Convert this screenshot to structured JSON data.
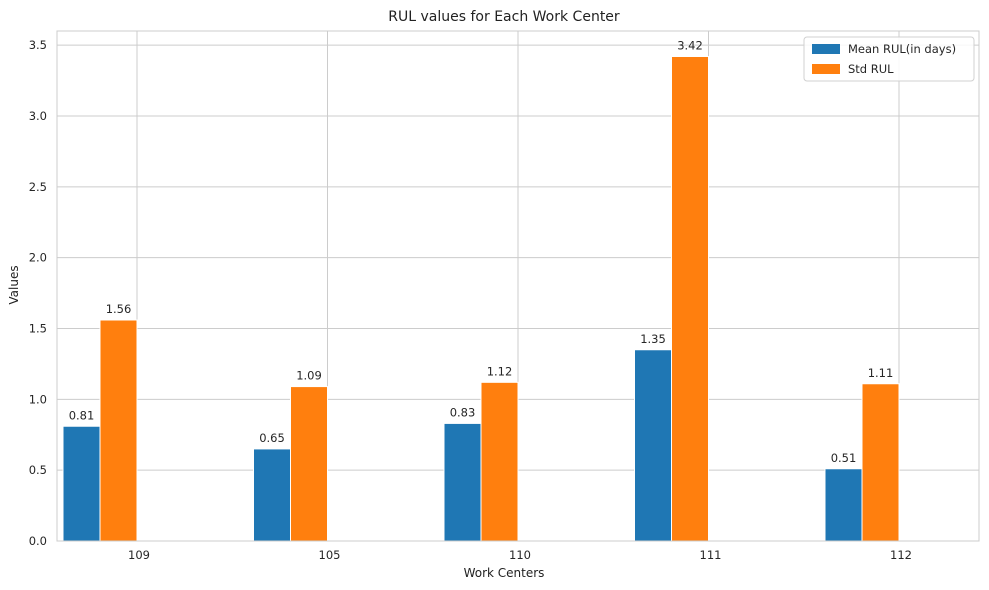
{
  "chart_data": {
    "type": "bar",
    "title": "RUL values for Each Work Center",
    "xlabel": "Work Centers",
    "ylabel": "Values",
    "categories": [
      "109",
      "105",
      "110",
      "111",
      "112"
    ],
    "series": [
      {
        "name": "Mean RUL(in days)",
        "color": "#1f77b4",
        "values": [
          0.81,
          0.65,
          0.83,
          1.35,
          0.51
        ]
      },
      {
        "name": "Std RUL",
        "color": "#ff7f0e",
        "values": [
          1.56,
          1.09,
          1.12,
          3.42,
          1.11
        ]
      }
    ],
    "ylim": [
      0,
      3.6
    ],
    "yticks": [
      "0.0",
      "0.5",
      "1.0",
      "1.5",
      "2.0",
      "2.5",
      "3.0",
      "3.5"
    ],
    "grid": true,
    "legend_position": "top-right"
  }
}
